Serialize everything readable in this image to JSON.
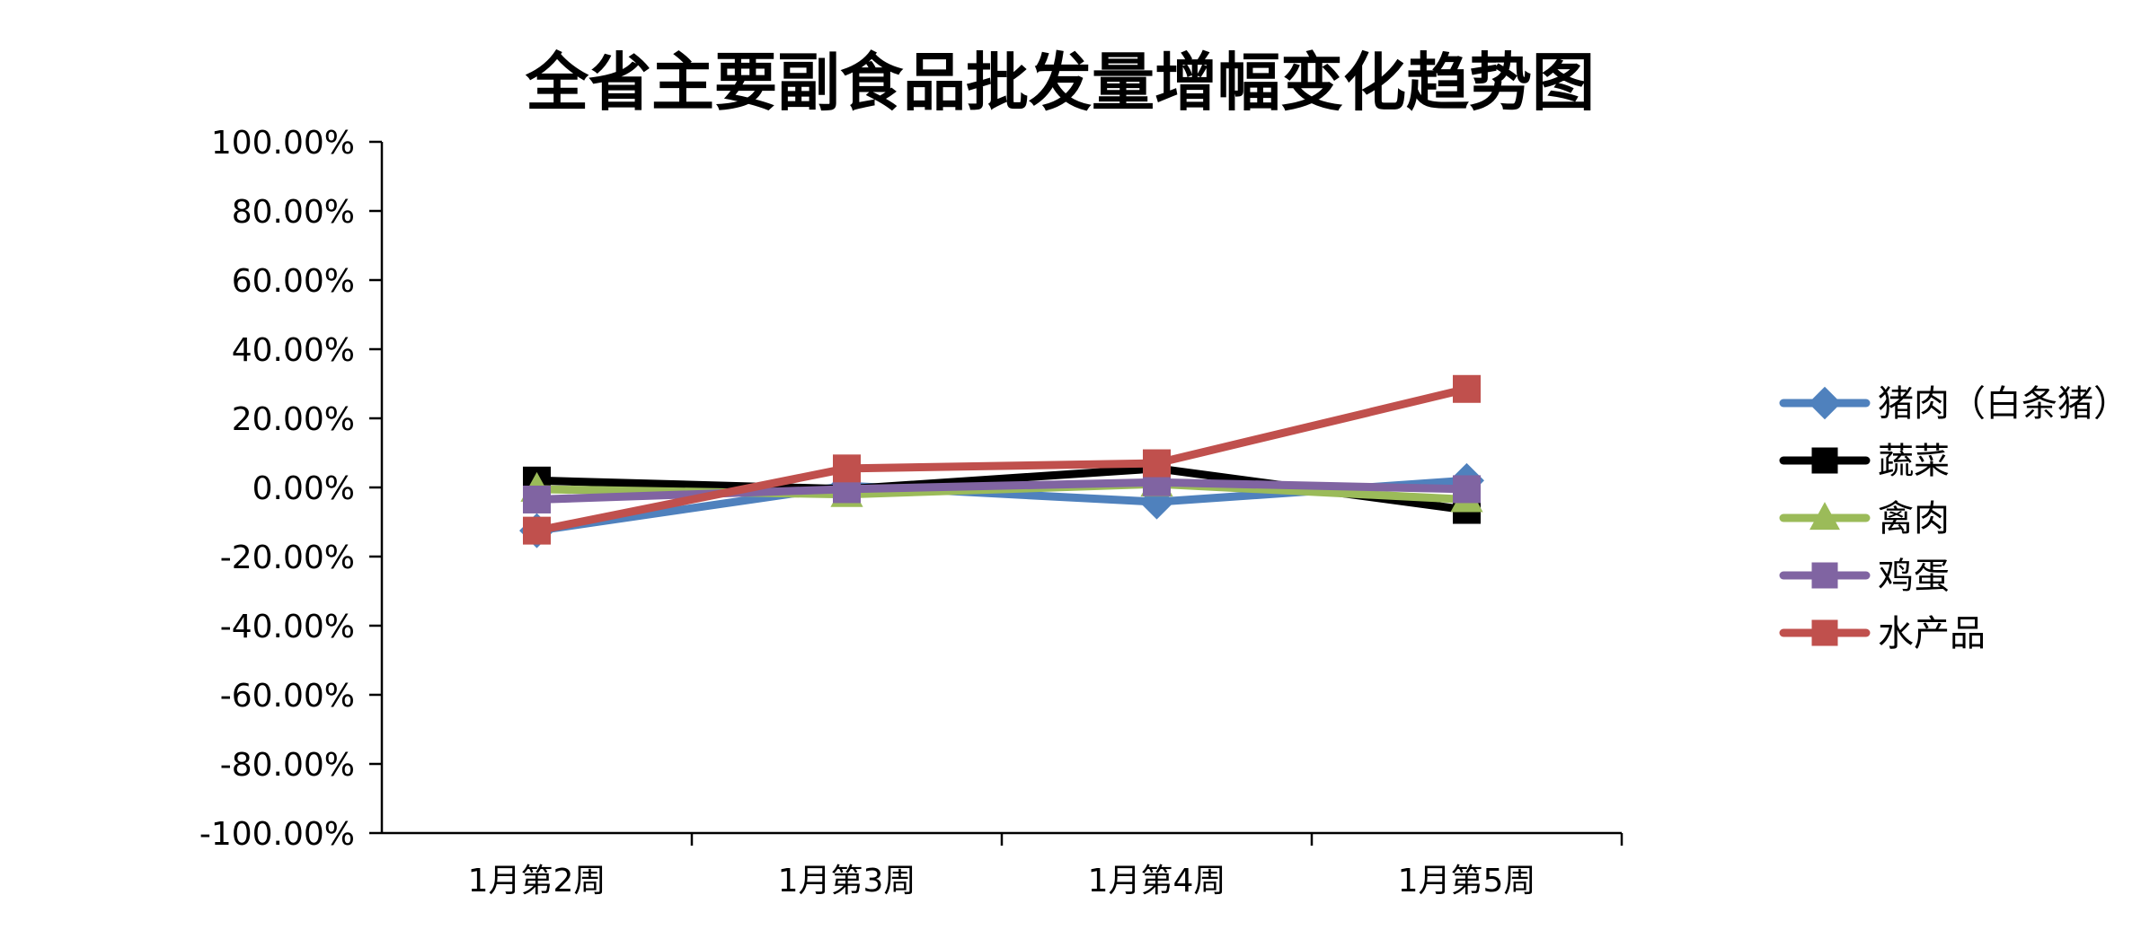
{
  "chart_data": {
    "type": "line",
    "title": "全省主要副食品批发量增幅变化趋势图",
    "xlabel": "",
    "ylabel": "",
    "categories": [
      "1月第2周",
      "1月第3周",
      "1月第4周",
      "1月第5周"
    ],
    "ylim": [
      -100,
      100
    ],
    "ytick_values": [
      100,
      80,
      60,
      40,
      20,
      0,
      -20,
      -40,
      -60,
      -80,
      -100
    ],
    "ytick_labels": [
      "100.00%",
      "80.00%",
      "60.00%",
      "40.00%",
      "20.00%",
      "0.00%",
      "-20.00%",
      "-40.00%",
      "-60.00%",
      "-80.00%",
      "-100.00%"
    ],
    "grid": false,
    "legend_position": "right",
    "series": [
      {
        "name": "猪肉（白条猪）",
        "color": "#4F81BD",
        "marker": "diamond",
        "values": [
          -12.5,
          0.5,
          -4.2,
          2.0
        ]
      },
      {
        "name": "蔬菜",
        "color": "#000000",
        "marker": "square",
        "values": [
          2.0,
          -0.5,
          5.5,
          -6.5
        ]
      },
      {
        "name": "禽肉",
        "color": "#9BBB59",
        "marker": "triangle",
        "values": [
          -0.5,
          -2.0,
          1.0,
          -3.5
        ]
      },
      {
        "name": "鸡蛋",
        "color": "#8064A2",
        "marker": "square",
        "values": [
          -3.5,
          -0.5,
          1.5,
          -0.5
        ]
      },
      {
        "name": "水产品",
        "color": "#C0504D",
        "marker": "square",
        "values": [
          -12.5,
          5.5,
          7.0,
          28.5
        ]
      }
    ]
  }
}
